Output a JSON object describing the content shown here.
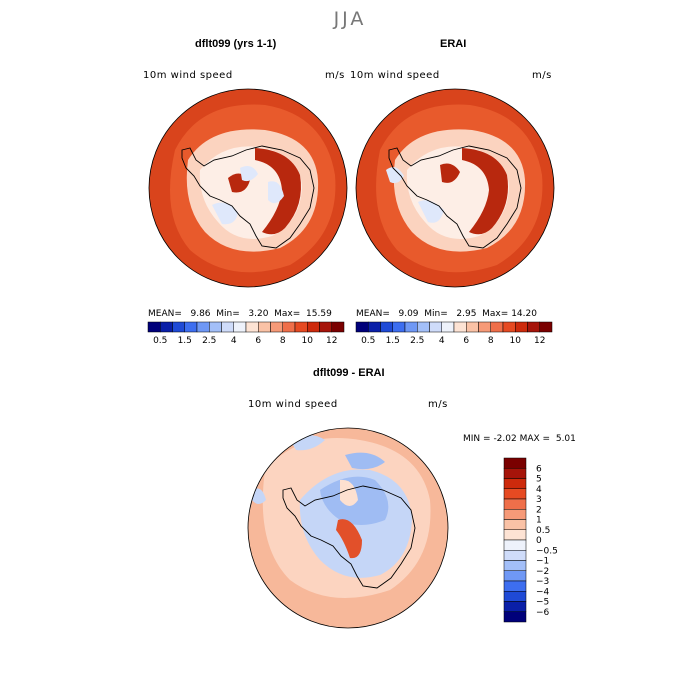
{
  "season": "JJA",
  "panels": {
    "model": {
      "title": "dflt099 (yrs 1-1)",
      "field": "10m wind speed",
      "units": "m/s",
      "stats": {
        "mean_label": "MEAN=",
        "mean": "9.86",
        "min_label": "Min=",
        "min": "3.20",
        "max_label": "Max=",
        "max": "15.59"
      }
    },
    "obs": {
      "title": "ERAI",
      "field": "10m wind speed",
      "units": "m/s",
      "stats": {
        "mean_label": "MEAN=",
        "mean": "9.09",
        "min_label": "Min=",
        "min": "2.95",
        "max_label": "Max=",
        "max": "14.20"
      }
    },
    "diff": {
      "title": "dflt099 - ERAI",
      "field": "10m wind speed",
      "units": "m/s",
      "stats": {
        "min_label": "MIN =",
        "min": "-2.02",
        "max_label": "MAX =",
        "max": "5.01"
      }
    }
  },
  "colorbar_abs": {
    "labels": [
      "0.5",
      "1.5",
      "2.5",
      "4",
      "6",
      "8",
      "10",
      "12"
    ],
    "colors": [
      "#00007a",
      "#0a1fa8",
      "#1f4ad6",
      "#3d6ef0",
      "#6f98f5",
      "#a3bff8",
      "#cfdcfa",
      "#eef2fb",
      "#fde3d4",
      "#fac2a6",
      "#f69a78",
      "#ef6f4a",
      "#e64a22",
      "#cd2a0c",
      "#a6140a",
      "#7a0000"
    ]
  },
  "colorbar_diff": {
    "labels": [
      "6",
      "5",
      "4",
      "3",
      "2",
      "1",
      "0.5",
      "0",
      "−0.5",
      "−1",
      "−2",
      "−3",
      "−4",
      "−5",
      "−6"
    ],
    "colors": [
      "#7a0000",
      "#a6140a",
      "#cd2a0c",
      "#e64a22",
      "#ef6f4a",
      "#f69a78",
      "#fac2a6",
      "#fde3d4",
      "#eef2fb",
      "#cfdcfa",
      "#a3bff8",
      "#6f98f5",
      "#3d6ef0",
      "#1f4ad6",
      "#0a1fa8",
      "#00007a"
    ]
  },
  "map_colors": {
    "abs_outer": "#d9441c",
    "abs_ring": "#e85a2c",
    "abs_coast": "#fbd3bf",
    "abs_light": "#fdeee6",
    "abs_blue": "#dfe8fb",
    "abs_dark": "#b8280e",
    "diff_base": "#f7b89a",
    "diff_light": "#fde0d0",
    "diff_blue": "#c5d6f7",
    "diff_blue2": "#9fbcf3",
    "diff_red": "#e2502a",
    "coast_line": "#000000"
  }
}
